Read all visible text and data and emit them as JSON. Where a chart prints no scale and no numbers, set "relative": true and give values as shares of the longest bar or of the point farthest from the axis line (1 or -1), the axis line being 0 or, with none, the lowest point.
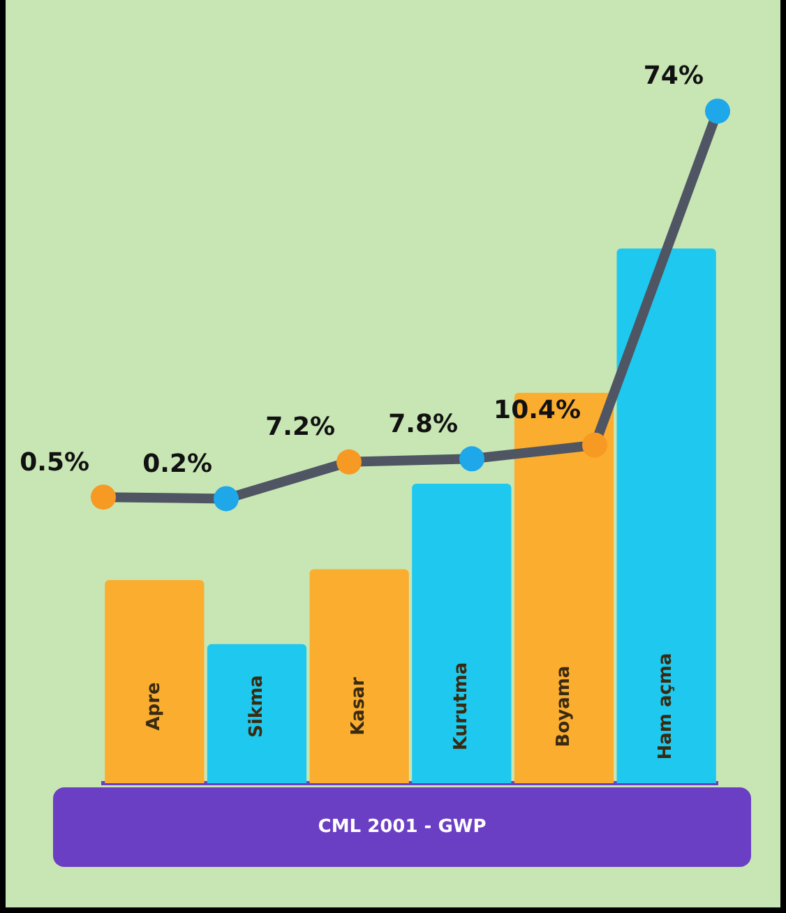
{
  "chart_data": [
    {
      "type": "bar",
      "relative": true,
      "categories": [
        "Apre",
        "Sikma",
        "Kasar",
        "Kurutma",
        "Boyama",
        "Ham açma"
      ],
      "xlabel": "CML 2001 - GWP",
      "legend": false,
      "tick_labels": false,
      "series": [
        {
          "values": [
            0.38,
            0.26,
            0.4,
            0.56,
            0.73,
            1
          ],
          "colors": [
            "#fbad2f",
            "#1ec8ef",
            "#fbad2f",
            "#1ec8ef",
            "#fbad2f",
            "#1ec8ef"
          ]
        }
      ]
    },
    {
      "type": "line",
      "categories": [
        null,
        null,
        null,
        null,
        null,
        null
      ],
      "legend": false,
      "tick_labels": false,
      "marker": "circle",
      "line_style": "solid",
      "series": [
        {
          "color": "#4f5563",
          "values": [
            0.5,
            0.2,
            7.2,
            7.8,
            10.4,
            74
          ],
          "colors": [
            "#f79a24",
            "#1ea8ea",
            "#f79a24",
            "#1ea8ea",
            "#f79a24",
            "#1ea8ea"
          ],
          "value_labels": [
            "0.5%",
            "0.2%",
            "7.2%",
            "7.8%",
            "10.4%",
            "74%"
          ]
        }
      ]
    }
  ]
}
